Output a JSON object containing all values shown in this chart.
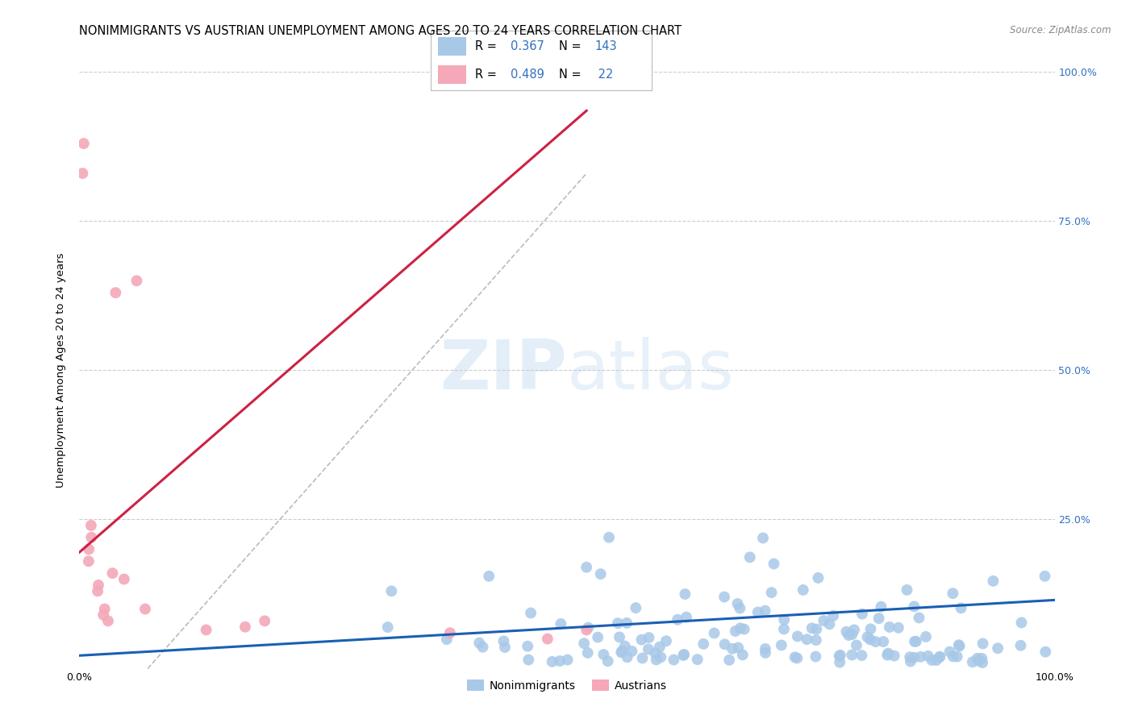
{
  "title": "NONIMMIGRANTS VS AUSTRIAN UNEMPLOYMENT AMONG AGES 20 TO 24 YEARS CORRELATION CHART",
  "source": "Source: ZipAtlas.com",
  "ylabel": "Unemployment Among Ages 20 to 24 years",
  "xlim": [
    0,
    1.0
  ],
  "ylim": [
    0,
    1.0
  ],
  "xticks": [
    0.0,
    0.25,
    0.5,
    0.75,
    1.0
  ],
  "xticklabels": [
    "0.0%",
    "",
    "",
    "",
    "100.0%"
  ],
  "yticks": [
    0.0,
    0.25,
    0.5,
    0.75,
    1.0
  ],
  "right_yticklabels": [
    "",
    "25.0%",
    "50.0%",
    "75.0%",
    "100.0%"
  ],
  "nonimmigrant_color": "#a8c8e8",
  "austrian_color": "#f4a8b8",
  "nonimmigrant_line_color": "#1a5fb4",
  "austrian_line_color": "#cc2244",
  "dashed_line_color": "#bbbbbb",
  "R1": "0.367",
  "N1": "143",
  "R2": "0.489",
  "N2": " 22",
  "blue_label_color": "#3070c0",
  "watermark_color": "#ddeeff",
  "background_color": "#ffffff",
  "grid_color": "#cccccc",
  "title_fontsize": 10.5,
  "axis_label_fontsize": 9.5,
  "tick_fontsize": 9,
  "right_tick_color": "#3070c0",
  "legend_fontsize": 10.5,
  "nonimmigrant_scatter_seed": 123,
  "austrian_scatter_seed": 456,
  "blue_line_x0": 0.0,
  "blue_line_y0": 0.022,
  "blue_line_x1": 1.0,
  "blue_line_y1": 0.115,
  "pink_line_x0": 0.0,
  "pink_line_y0": 0.195,
  "pink_line_x1": 0.52,
  "pink_line_y1": 0.935,
  "dash_line_x0": 0.07,
  "dash_line_y0": 0.0,
  "dash_line_x1": 0.52,
  "dash_line_y1": 0.83
}
